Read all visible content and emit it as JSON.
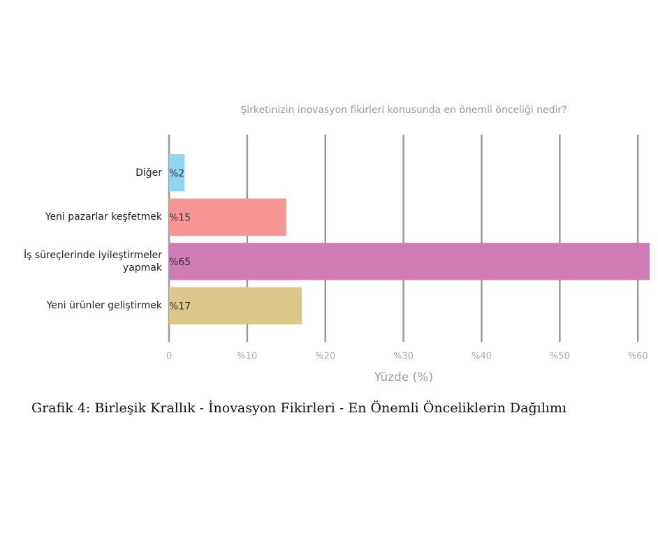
{
  "chart_data": {
    "type": "bar",
    "orientation": "horizontal",
    "title": "Şirketinizin inovasyon fikirleri konusunda en önemli önceliği nedir?",
    "categories": [
      "Diğer",
      "Yeni pazarlar keşfetmek",
      "İş süreçlerinde iyileştirmeler yapmak",
      "Yeni ürünler geliştirmek"
    ],
    "values": [
      2,
      15,
      65,
      17
    ],
    "value_labels": [
      "%2",
      "%15",
      "%65",
      "%17"
    ],
    "colors": [
      "#8fd3f5",
      "#f79592",
      "#cf7bb4",
      "#dcc68a"
    ],
    "xlim": [
      0,
      61.5
    ],
    "xticks": [
      0,
      {
        "value": 10,
        "label": "%10"
      },
      {
        "value": 20,
        "label": "%20"
      },
      {
        "value": 30,
        "label": "%30"
      },
      {
        "value": 40,
        "label": "%40"
      },
      {
        "value": 50,
        "label": "%50"
      },
      {
        "value": 60,
        "label": "%60"
      }
    ],
    "xlabel": "Yüzde (%)",
    "grid": true
  },
  "caption": "Grafik 4: Birleşik Krallık - İnovasyon Fikirleri - En Önemli Önceliklerin Dağılımı"
}
